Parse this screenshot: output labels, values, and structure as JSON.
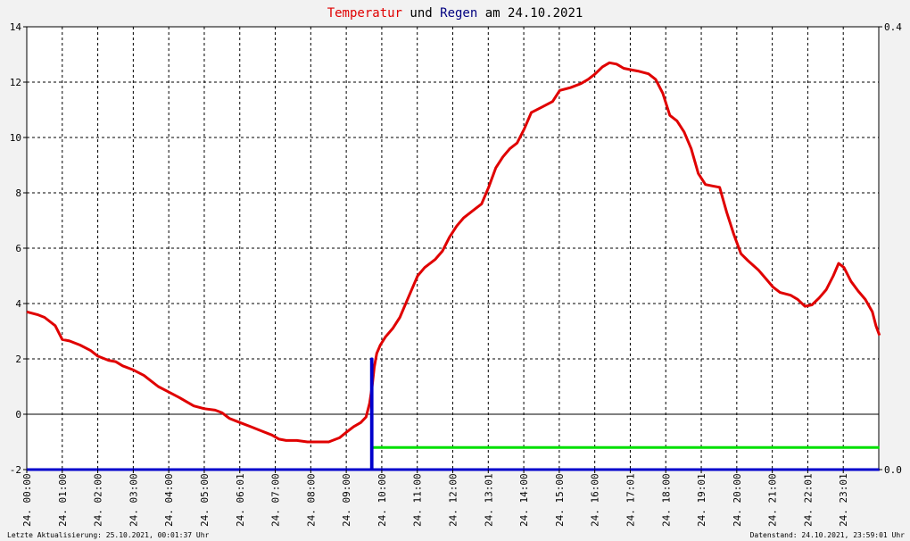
{
  "chart_data": {
    "type": "line",
    "title_parts": [
      {
        "text": "Temperatur",
        "color": "#e00000"
      },
      {
        "text": " und ",
        "color": "#000000"
      },
      {
        "text": "Regen",
        "color": "#000080"
      },
      {
        "text": " am 24.10.2021",
        "color": "#000000"
      }
    ],
    "x_tick_labels": [
      "24. 00:00",
      "24. 01:00",
      "24. 02:00",
      "24. 03:00",
      "24. 04:00",
      "24. 05:00",
      "24. 06:01",
      "24. 07:00",
      "24. 08:00",
      "24. 09:00",
      "24. 10:00",
      "24. 11:00",
      "24. 12:00",
      "24. 13:01",
      "24. 14:00",
      "24. 15:00",
      "24. 16:00",
      "24. 17:01",
      "24. 18:00",
      "24. 19:01",
      "24. 20:00",
      "24. 21:00",
      "24. 22:01",
      "24. 23:01"
    ],
    "y_left": {
      "min": -2,
      "max": 14,
      "ticks": [
        -2,
        0,
        2,
        4,
        6,
        8,
        10,
        12,
        14
      ]
    },
    "y_right": {
      "min": 0.0,
      "max": 0.4,
      "tick_labels": [
        "0.0",
        "0.4"
      ]
    },
    "x_range_hours": [
      0,
      23.98
    ],
    "grid": true,
    "series": [
      {
        "key": "temperature",
        "color": "#e00000",
        "axis": "left",
        "points": [
          [
            0.0,
            3.7
          ],
          [
            0.3,
            3.6
          ],
          [
            0.5,
            3.5
          ],
          [
            0.8,
            3.2
          ],
          [
            1.0,
            2.7
          ],
          [
            1.2,
            2.65
          ],
          [
            1.5,
            2.5
          ],
          [
            1.8,
            2.3
          ],
          [
            2.0,
            2.1
          ],
          [
            2.3,
            1.95
          ],
          [
            2.5,
            1.9
          ],
          [
            2.7,
            1.75
          ],
          [
            3.0,
            1.6
          ],
          [
            3.3,
            1.4
          ],
          [
            3.5,
            1.2
          ],
          [
            3.7,
            1.0
          ],
          [
            4.0,
            0.8
          ],
          [
            4.3,
            0.6
          ],
          [
            4.5,
            0.45
          ],
          [
            4.7,
            0.3
          ],
          [
            5.0,
            0.2
          ],
          [
            5.3,
            0.15
          ],
          [
            5.5,
            0.05
          ],
          [
            5.7,
            -0.15
          ],
          [
            6.0,
            -0.3
          ],
          [
            6.3,
            -0.45
          ],
          [
            6.6,
            -0.6
          ],
          [
            6.9,
            -0.75
          ],
          [
            7.1,
            -0.9
          ],
          [
            7.3,
            -0.95
          ],
          [
            7.6,
            -0.95
          ],
          [
            7.9,
            -1.0
          ],
          [
            8.2,
            -1.0
          ],
          [
            8.5,
            -1.0
          ],
          [
            8.8,
            -0.85
          ],
          [
            9.0,
            -0.65
          ],
          [
            9.2,
            -0.45
          ],
          [
            9.4,
            -0.3
          ],
          [
            9.55,
            -0.1
          ],
          [
            9.65,
            0.4
          ],
          [
            9.72,
            1.0
          ],
          [
            9.78,
            1.7
          ],
          [
            9.85,
            2.2
          ],
          [
            9.95,
            2.5
          ],
          [
            10.1,
            2.8
          ],
          [
            10.3,
            3.1
          ],
          [
            10.5,
            3.5
          ],
          [
            10.7,
            4.1
          ],
          [
            10.9,
            4.7
          ],
          [
            11.0,
            5.0
          ],
          [
            11.2,
            5.3
          ],
          [
            11.5,
            5.6
          ],
          [
            11.7,
            5.9
          ],
          [
            11.9,
            6.4
          ],
          [
            12.1,
            6.8
          ],
          [
            12.3,
            7.1
          ],
          [
            12.6,
            7.4
          ],
          [
            12.8,
            7.6
          ],
          [
            13.0,
            8.2
          ],
          [
            13.2,
            8.9
          ],
          [
            13.4,
            9.3
          ],
          [
            13.6,
            9.6
          ],
          [
            13.8,
            9.8
          ],
          [
            14.0,
            10.3
          ],
          [
            14.2,
            10.9
          ],
          [
            14.5,
            11.1
          ],
          [
            14.8,
            11.3
          ],
          [
            15.0,
            11.7
          ],
          [
            15.3,
            11.8
          ],
          [
            15.6,
            11.95
          ],
          [
            15.8,
            12.1
          ],
          [
            16.0,
            12.3
          ],
          [
            16.2,
            12.55
          ],
          [
            16.4,
            12.7
          ],
          [
            16.6,
            12.65
          ],
          [
            16.8,
            12.5
          ],
          [
            17.0,
            12.45
          ],
          [
            17.2,
            12.4
          ],
          [
            17.5,
            12.3
          ],
          [
            17.7,
            12.1
          ],
          [
            17.9,
            11.6
          ],
          [
            18.1,
            10.8
          ],
          [
            18.3,
            10.6
          ],
          [
            18.5,
            10.2
          ],
          [
            18.7,
            9.6
          ],
          [
            18.9,
            8.7
          ],
          [
            19.1,
            8.3
          ],
          [
            19.3,
            8.25
          ],
          [
            19.5,
            8.2
          ],
          [
            19.7,
            7.3
          ],
          [
            19.9,
            6.5
          ],
          [
            20.1,
            5.8
          ],
          [
            20.3,
            5.55
          ],
          [
            20.6,
            5.2
          ],
          [
            20.8,
            4.9
          ],
          [
            21.0,
            4.6
          ],
          [
            21.2,
            4.4
          ],
          [
            21.5,
            4.3
          ],
          [
            21.7,
            4.15
          ],
          [
            21.9,
            3.9
          ],
          [
            22.1,
            3.95
          ],
          [
            22.3,
            4.2
          ],
          [
            22.5,
            4.5
          ],
          [
            22.7,
            5.0
          ],
          [
            22.85,
            5.45
          ],
          [
            23.0,
            5.3
          ],
          [
            23.2,
            4.8
          ],
          [
            23.4,
            4.45
          ],
          [
            23.6,
            4.15
          ],
          [
            23.8,
            3.7
          ],
          [
            23.9,
            3.2
          ],
          [
            24.0,
            2.85
          ]
        ]
      },
      {
        "key": "rain",
        "color": "#0000cc",
        "axis": "right",
        "points": [
          [
            0.0,
            0.0
          ],
          [
            9.7,
            0.0
          ],
          [
            9.7,
            0.1
          ],
          [
            9.72,
            0.1
          ],
          [
            9.72,
            0.0
          ],
          [
            24.0,
            0.0
          ]
        ]
      },
      {
        "key": "rain_total",
        "color": "#00e000",
        "axis": "left",
        "points": [
          [
            9.72,
            -1.2
          ],
          [
            24.0,
            -1.2
          ]
        ]
      }
    ]
  },
  "footer": {
    "left": "Letzte Aktualisierung: 25.10.2021, 00:01:37 Uhr",
    "right": "Datenstand: 24.10.2021, 23:59:01 Uhr"
  }
}
